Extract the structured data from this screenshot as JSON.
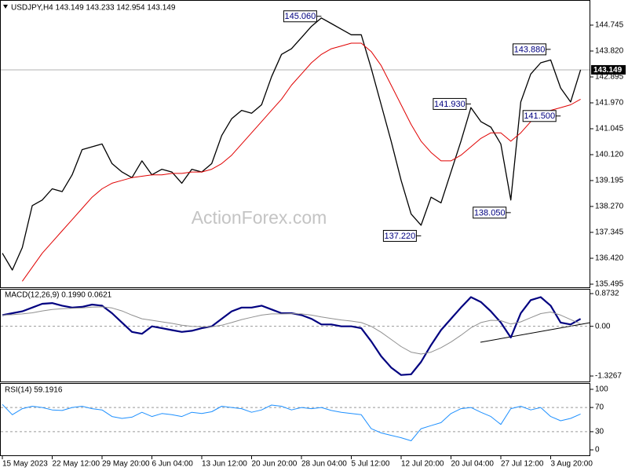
{
  "chart_data": [
    {
      "type": "line",
      "title": "USDJPY,H4 143.149 143.233 142.954 143.149",
      "watermark": "ActionForex.com",
      "categories": [
        "15 May 2023",
        null,
        null,
        null,
        null,
        "22 May 12:00",
        null,
        null,
        null,
        null,
        "29 May 20:00",
        null,
        null,
        null,
        null,
        "6 Jun 04:00",
        null,
        null,
        null,
        null,
        "13 Jun 12:00",
        null,
        null,
        null,
        null,
        "20 Jun 20:00",
        null,
        null,
        null,
        null,
        "28 Jun 04:00",
        null,
        null,
        null,
        null,
        "5 Jul 12:00",
        null,
        null,
        null,
        null,
        "12 Jul 20:00",
        null,
        null,
        null,
        null,
        "20 Jul 04:00",
        null,
        null,
        null,
        null,
        "27 Jul 12:00",
        null,
        null,
        null,
        null,
        "3 Aug 20:00",
        null,
        null,
        null
      ],
      "ylim": [
        135.355,
        145.586
      ],
      "yticks": [
        {
          "value": 144.745,
          "label": "144.745"
        },
        {
          "value": 143.82,
          "label": "143.820"
        },
        {
          "value": 142.895,
          "label": "142.895"
        },
        {
          "value": 141.97,
          "label": "141.970"
        },
        {
          "value": 141.045,
          "label": "141.045"
        },
        {
          "value": 140.12,
          "label": "140.120"
        },
        {
          "value": 139.195,
          "label": "139.195"
        },
        {
          "value": 138.27,
          "label": "138.270"
        },
        {
          "value": 137.345,
          "label": "137.345"
        },
        {
          "value": 136.42,
          "label": "136.420"
        },
        {
          "value": 135.495,
          "label": "135.495"
        }
      ],
      "last": {
        "value": 143.149,
        "label": "143.149"
      },
      "series": [
        {
          "color": "#000000",
          "width": 1.3,
          "values": [
            136.6,
            136.0,
            136.8,
            138.3,
            138.5,
            138.9,
            138.8,
            139.4,
            140.3,
            140.4,
            140.5,
            139.8,
            139.5,
            139.3,
            139.9,
            139.4,
            139.6,
            139.5,
            139.1,
            139.6,
            139.5,
            139.8,
            140.8,
            141.4,
            141.7,
            141.6,
            141.9,
            142.9,
            143.7,
            143.9,
            144.3,
            144.7,
            145.0,
            144.8,
            144.6,
            144.4,
            144.4,
            143.2,
            141.9,
            140.6,
            139.2,
            138.0,
            137.6,
            138.6,
            138.4,
            139.5,
            140.6,
            141.8,
            141.3,
            141.1,
            140.5,
            138.5,
            142.0,
            143.0,
            143.4,
            143.5,
            142.5,
            142.0,
            143.149
          ]
        },
        {
          "color": "#e00000",
          "width": 1,
          "values": [
            null,
            null,
            135.6,
            136.1,
            136.6,
            137.0,
            137.4,
            137.8,
            138.2,
            138.6,
            138.9,
            139.1,
            139.2,
            139.3,
            139.35,
            139.4,
            139.4,
            139.45,
            139.45,
            139.5,
            139.5,
            139.6,
            139.8,
            140.1,
            140.5,
            140.9,
            141.3,
            141.7,
            142.1,
            142.6,
            143.0,
            143.4,
            143.7,
            143.9,
            144.0,
            144.1,
            144.1,
            143.8,
            143.3,
            142.6,
            141.9,
            141.2,
            140.6,
            140.2,
            139.9,
            139.9,
            140.1,
            140.4,
            140.7,
            140.9,
            140.9,
            140.6,
            140.9,
            141.3,
            141.5,
            141.7,
            141.8,
            141.9,
            142.1
          ]
        }
      ],
      "annotations": [
        {
          "value": 145.06,
          "label": "145.060",
          "x": 32
        },
        {
          "value": 137.22,
          "label": "137.220",
          "x": 42
        },
        {
          "value": 141.93,
          "label": "141.930",
          "x": 47
        },
        {
          "value": 138.05,
          "label": "138.050",
          "x": 51
        },
        {
          "value": 143.88,
          "label": "143.880",
          "x": 55
        },
        {
          "value": 141.5,
          "label": "141.500",
          "x": 56
        }
      ]
    },
    {
      "type": "line",
      "title": "MACD(12,26,9) 0.1990 0.0621",
      "ylim": [
        -1.494,
        0.978
      ],
      "yticks": [
        0.8732,
        {
          "value": 0,
          "label": "0.00"
        },
        -1.3267
      ],
      "levels": [
        0
      ],
      "series": [
        {
          "color": "#000080",
          "width": 2.2,
          "values": [
            0.3,
            0.35,
            0.4,
            0.5,
            0.6,
            0.62,
            0.55,
            0.5,
            0.52,
            0.58,
            0.55,
            0.35,
            0.1,
            -0.15,
            -0.2,
            0.0,
            -0.05,
            -0.1,
            -0.15,
            -0.12,
            -0.05,
            0.0,
            0.2,
            0.4,
            0.5,
            0.5,
            0.55,
            0.45,
            0.35,
            0.35,
            0.3,
            0.2,
            0.05,
            0.05,
            0.0,
            0.0,
            -0.05,
            -0.4,
            -0.8,
            -1.1,
            -1.3,
            -1.28,
            -0.95,
            -0.5,
            -0.1,
            0.2,
            0.5,
            0.78,
            0.65,
            0.4,
            0.1,
            -0.3,
            0.35,
            0.7,
            0.78,
            0.55,
            0.1,
            0.05,
            0.199
          ]
        },
        {
          "color": "#909090",
          "width": 1,
          "values": [
            0.3,
            0.31,
            0.33,
            0.36,
            0.41,
            0.45,
            0.47,
            0.48,
            0.49,
            0.51,
            0.52,
            0.49,
            0.41,
            0.3,
            0.2,
            0.16,
            0.12,
            0.08,
            0.03,
            0.0,
            -0.01,
            -0.01,
            0.03,
            0.1,
            0.18,
            0.24,
            0.3,
            0.33,
            0.33,
            0.34,
            0.33,
            0.3,
            0.25,
            0.21,
            0.17,
            0.14,
            0.1,
            0.0,
            -0.16,
            -0.35,
            -0.54,
            -0.69,
            -0.74,
            -0.69,
            -0.57,
            -0.42,
            -0.24,
            -0.04,
            0.1,
            0.16,
            0.15,
            0.06,
            0.12,
            0.23,
            0.34,
            0.38,
            0.3,
            0.18,
            0.0621
          ]
        }
      ]
    },
    {
      "type": "line",
      "title": "RSI(14) 59.1916",
      "ylim": [
        -9,
        109
      ],
      "yticks": [
        100,
        70,
        30,
        0
      ],
      "levels": [
        70,
        30
      ],
      "series": [
        {
          "color": "#1e90ff",
          "width": 1,
          "values": [
            75,
            58,
            68,
            72,
            70,
            66,
            65,
            70,
            72,
            68,
            66,
            55,
            52,
            54,
            62,
            55,
            60,
            58,
            55,
            62,
            60,
            63,
            72,
            70,
            68,
            62,
            66,
            74,
            72,
            66,
            70,
            68,
            70,
            65,
            62,
            60,
            58,
            35,
            28,
            24,
            20,
            15,
            35,
            40,
            45,
            60,
            68,
            70,
            62,
            55,
            42,
            68,
            72,
            66,
            70,
            55,
            48,
            52,
            59.1916
          ]
        }
      ]
    }
  ]
}
